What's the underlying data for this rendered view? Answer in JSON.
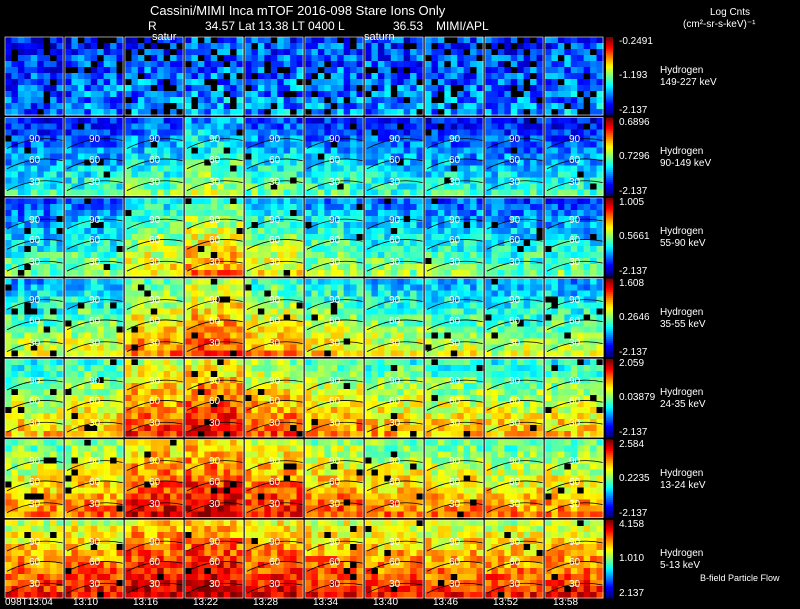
{
  "header": {
    "title": "Cassini/MIMI Inca mTOF  2016-098   Stare   Ions Only",
    "r_label": "R",
    "orbit_line": "34.57 Lat 13.38 LT 0400 L",
    "l_value": "36.53",
    "institution": "MIMI/APL",
    "saturn_label_1": "satur",
    "saturn_label_2": "saturn"
  },
  "colorbar": {
    "title_line1": "Log Cnts",
    "title_line2": "(cm²-sr-s-keV)⁻¹"
  },
  "footer_note": "B-field Particle Flow",
  "chart_data": {
    "type": "heatmap",
    "title": "Cassini/MIMI Inca mTOF 2016-098 Stare Ions Only",
    "x_tick_labels": [
      "098T13:04",
      "13:10",
      "13:16",
      "13:22",
      "13:28",
      "13:34",
      "13:40",
      "13:46",
      "13:52",
      "13:58"
    ],
    "contour_labels": [
      "90",
      "60",
      "30",
      "120"
    ],
    "rows": [
      {
        "species": "Hydrogen",
        "energy": "149-227 keV",
        "cmax": "-0.2491",
        "cmid": "-1.193",
        "cmin": "-2.137",
        "mean_level": [
          0.22,
          0.25,
          0.26,
          0.28,
          0.27,
          0.26,
          0.25,
          0.25,
          0.24,
          0.27
        ]
      },
      {
        "species": "Hydrogen",
        "energy": "90-149 keV",
        "cmax": "0.6896",
        "cmid": "0.7296",
        "cmin": "-2.137",
        "mean_level": [
          0.28,
          0.3,
          0.36,
          0.44,
          0.35,
          0.32,
          0.3,
          0.29,
          0.28,
          0.28
        ]
      },
      {
        "species": "Hydrogen",
        "energy": "55-90 keV",
        "cmax": "1.005",
        "cmid": "0.5661",
        "cmin": "-2.137",
        "mean_level": [
          0.35,
          0.38,
          0.52,
          0.62,
          0.5,
          0.42,
          0.38,
          0.37,
          0.35,
          0.35
        ]
      },
      {
        "species": "Hydrogen",
        "energy": "35-55 keV",
        "cmax": "1.608",
        "cmid": "0.2646",
        "cmin": "-2.137",
        "mean_level": [
          0.45,
          0.48,
          0.62,
          0.7,
          0.6,
          0.52,
          0.48,
          0.46,
          0.44,
          0.44
        ]
      },
      {
        "species": "Hydrogen",
        "energy": "24-35 keV",
        "cmax": "2.059",
        "cmid": "0.03879",
        "cmin": "-2.137",
        "mean_level": [
          0.55,
          0.58,
          0.72,
          0.78,
          0.68,
          0.62,
          0.58,
          0.56,
          0.55,
          0.56
        ]
      },
      {
        "species": "Hydrogen",
        "energy": "13-24 keV",
        "cmax": "2.584",
        "cmid": "0.2235",
        "cmin": "-2.137",
        "mean_level": [
          0.62,
          0.65,
          0.78,
          0.82,
          0.74,
          0.68,
          0.64,
          0.62,
          0.61,
          0.62
        ]
      },
      {
        "species": "Hydrogen",
        "energy": "5-13 keV",
        "cmax": "4.158",
        "cmid": "1.010",
        "cmin": "2.137",
        "mean_level": [
          0.72,
          0.74,
          0.82,
          0.84,
          0.78,
          0.75,
          0.73,
          0.72,
          0.72,
          0.73
        ]
      }
    ]
  }
}
